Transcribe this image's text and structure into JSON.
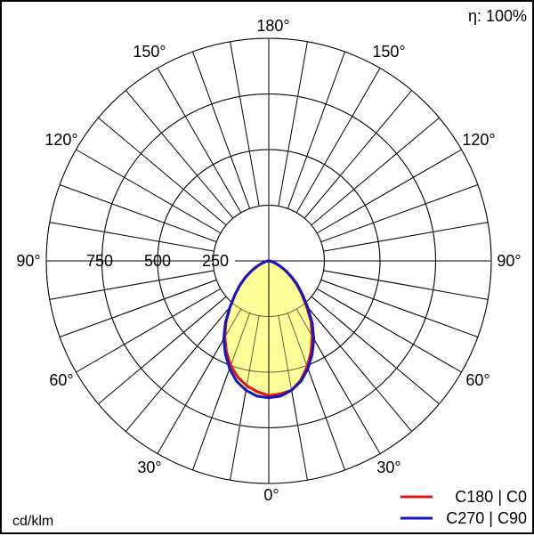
{
  "chart_data": {
    "type": "polar",
    "unit_label": "cd/klm",
    "efficiency_label": "η: 100%",
    "radial_ticks": [
      250,
      500,
      750
    ],
    "radial_max": 1000,
    "angle_labels": {
      "top": "180°",
      "bottom": "0°",
      "left": [
        "150°",
        "120°",
        "90°",
        "60°",
        "30°"
      ],
      "right": [
        "150°",
        "120°",
        "90°",
        "60°",
        "30°"
      ]
    },
    "radial_tick_labels": [
      "750",
      "500",
      "250"
    ],
    "fill_color": "#ffff99",
    "series": [
      {
        "name": "C180 | C0",
        "color": "#e01414",
        "points": [
          [
            0,
            605
          ],
          [
            5,
            600
          ],
          [
            10,
            590
          ],
          [
            15,
            555
          ],
          [
            20,
            505
          ],
          [
            25,
            450
          ],
          [
            30,
            390
          ],
          [
            35,
            330
          ],
          [
            40,
            262
          ],
          [
            45,
            208
          ],
          [
            50,
            162
          ],
          [
            55,
            120
          ],
          [
            60,
            84
          ],
          [
            65,
            55
          ],
          [
            70,
            32
          ],
          [
            75,
            18
          ],
          [
            80,
            8
          ],
          [
            85,
            3
          ],
          [
            90,
            0
          ],
          [
            -90,
            0
          ],
          [
            -85,
            3
          ],
          [
            -80,
            8
          ],
          [
            -75,
            20
          ],
          [
            -70,
            38
          ],
          [
            -65,
            62
          ],
          [
            -60,
            92
          ],
          [
            -55,
            130
          ],
          [
            -50,
            170
          ],
          [
            -45,
            215
          ],
          [
            -40,
            270
          ],
          [
            -35,
            335
          ],
          [
            -30,
            395
          ],
          [
            -25,
            450
          ],
          [
            -20,
            500
          ],
          [
            -15,
            540
          ],
          [
            -10,
            570
          ],
          [
            -5,
            590
          ],
          [
            0,
            605
          ]
        ]
      },
      {
        "name": "C270 | C90",
        "color": "#1414c8",
        "points": [
          [
            0,
            615
          ],
          [
            5,
            610
          ],
          [
            10,
            590
          ],
          [
            15,
            560
          ],
          [
            20,
            515
          ],
          [
            25,
            462
          ],
          [
            30,
            405
          ],
          [
            35,
            340
          ],
          [
            40,
            272
          ],
          [
            45,
            215
          ],
          [
            50,
            168
          ],
          [
            55,
            125
          ],
          [
            60,
            88
          ],
          [
            65,
            58
          ],
          [
            70,
            34
          ],
          [
            75,
            18
          ],
          [
            80,
            8
          ],
          [
            85,
            3
          ],
          [
            90,
            0
          ],
          [
            -90,
            0
          ],
          [
            -85,
            3
          ],
          [
            -80,
            8
          ],
          [
            -75,
            18
          ],
          [
            -70,
            34
          ],
          [
            -65,
            58
          ],
          [
            -60,
            88
          ],
          [
            -55,
            125
          ],
          [
            -50,
            168
          ],
          [
            -45,
            215
          ],
          [
            -40,
            272
          ],
          [
            -35,
            340
          ],
          [
            -30,
            405
          ],
          [
            -25,
            462
          ],
          [
            -20,
            515
          ],
          [
            -15,
            560
          ],
          [
            -10,
            590
          ],
          [
            -5,
            610
          ],
          [
            0,
            615
          ]
        ]
      }
    ],
    "legend": [
      "C180 | C0",
      "C270 | C90"
    ]
  }
}
